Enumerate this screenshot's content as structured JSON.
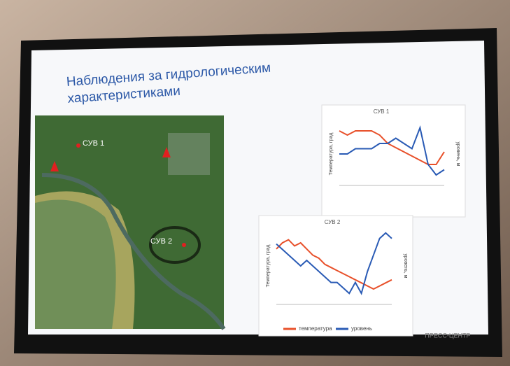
{
  "slide": {
    "title": "Наблюдения за гидрологическим характеристиками",
    "map_labels": [
      "СУВ 1",
      "СУВ 2"
    ],
    "footer": "ПРЕСС-ЦЕНТР",
    "charts": [
      {
        "type": "line",
        "title": "СУВ 1",
        "y_label": "Температура, град",
        "y2_label": "уровень, м",
        "ylim": [
          5,
          20
        ],
        "y2lim": [
          0.9,
          1.5
        ],
        "series": [
          {
            "color": "#e8502a",
            "values": [
              18,
              17,
              18,
              18,
              18,
              17,
              15,
              14,
              13,
              12,
              11,
              10,
              10,
              13
            ]
          },
          {
            "color": "#2a5bb5",
            "axis": "y2",
            "values": [
              1.2,
              1.2,
              1.25,
              1.25,
              1.25,
              1.3,
              1.3,
              1.35,
              1.3,
              1.25,
              1.45,
              1.1,
              1.0,
              1.05
            ]
          }
        ]
      },
      {
        "type": "line",
        "title": "СУВ 2",
        "y_label": "Температура, град",
        "y2_label": "уровень, м",
        "ylim": [
          0,
          25
        ],
        "y2lim": [
          0.9,
          1.6
        ],
        "series": [
          {
            "name": "температура",
            "color": "#e8502a",
            "values": [
              18,
              20,
              21,
              19,
              20,
              18,
              16,
              15,
              13,
              12,
              11,
              10,
              9,
              8,
              7,
              6,
              5,
              6,
              7,
              8
            ]
          },
          {
            "name": "уровень",
            "color": "#2a5bb5",
            "axis": "y2",
            "values": [
              1.45,
              1.4,
              1.35,
              1.3,
              1.25,
              1.3,
              1.25,
              1.2,
              1.15,
              1.1,
              1.1,
              1.05,
              1.0,
              1.1,
              1.0,
              1.2,
              1.35,
              1.5,
              1.55,
              1.5
            ]
          }
        ]
      }
    ]
  }
}
